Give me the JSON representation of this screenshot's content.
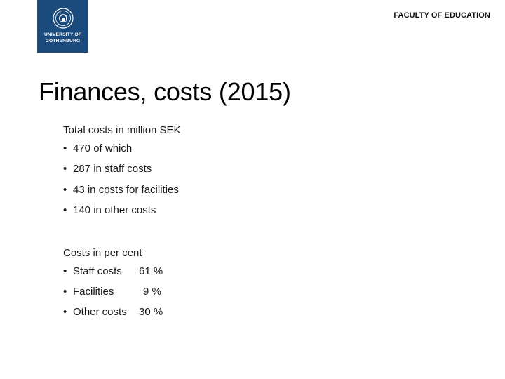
{
  "header": {
    "logo_text_line1": "UNIVERSITY OF",
    "logo_text_line2": "GOTHENBURG",
    "faculty": "FACULTY OF EDUCATION"
  },
  "slide": {
    "title": "Finances, costs (2015)"
  },
  "costs_million": {
    "heading": "Total costs in million SEK",
    "items": [
      "470 of which",
      "287 in staff costs",
      "43 in costs for facilities",
      "140 in other costs"
    ]
  },
  "costs_percent": {
    "heading": "Costs in per cent",
    "items": [
      {
        "label": "Staff costs",
        "value": "61 %"
      },
      {
        "label": "Facilities",
        "value": "9 %"
      },
      {
        "label": "Other costs",
        "value": "30 %"
      }
    ]
  },
  "bullet_symbol": "•",
  "colors": {
    "logo_background": "#1b4a7c"
  }
}
